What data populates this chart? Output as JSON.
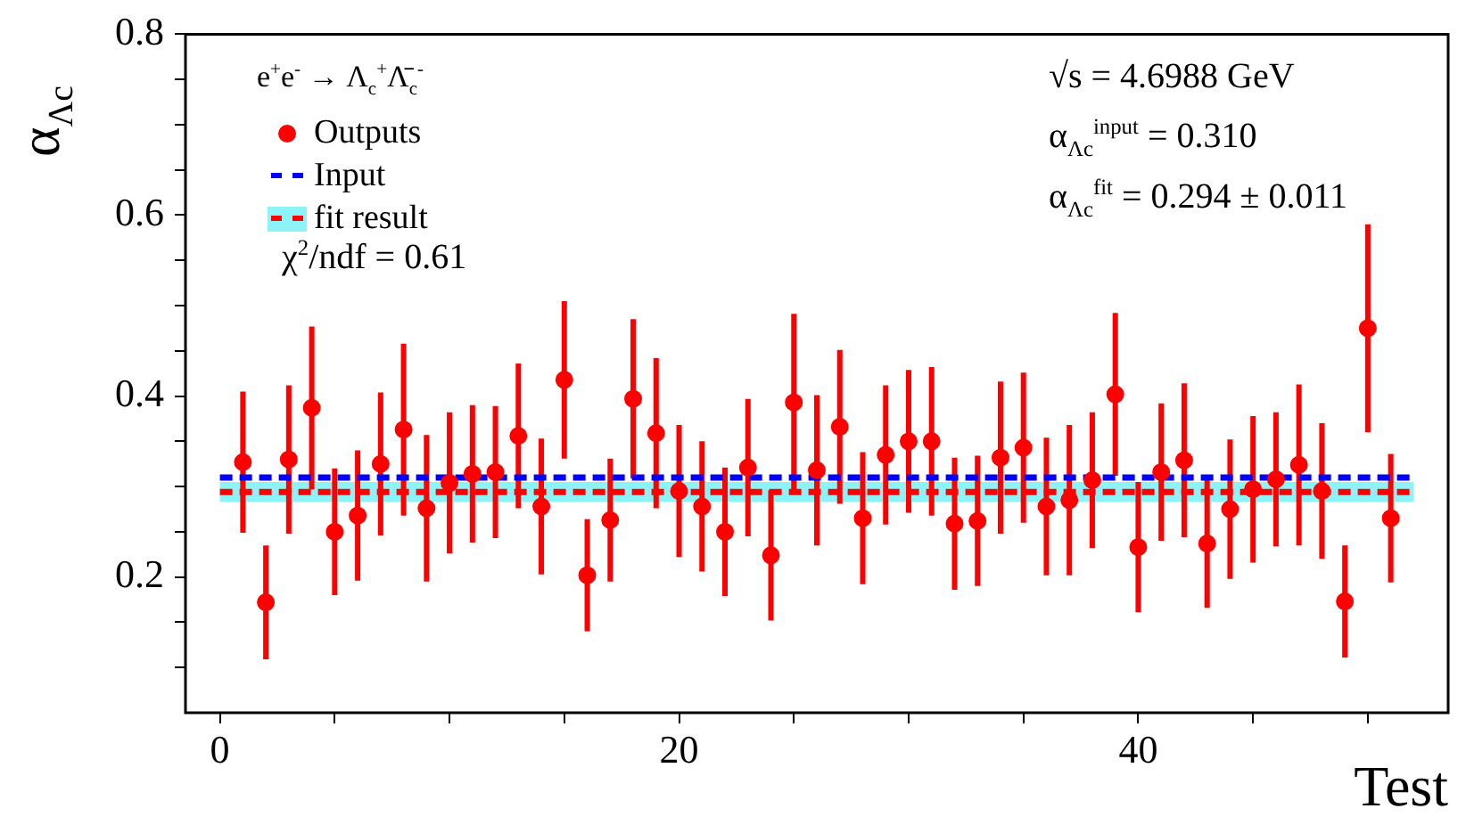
{
  "chart_data": {
    "type": "scatter",
    "xlabel": "Test",
    "ylabel": "α$_{Λc}$",
    "legend_title": "e$^{+}$e$^{-}$ → Λ$_{c}$$^{+}$Λ̄$_{c}$$^{-}$",
    "legend": "top left",
    "xlim": [
      -1.5,
      53.5
    ],
    "xticks": [
      0,
      {
        "value": 5,
        "label": null
      },
      {
        "value": 10,
        "label": null
      },
      {
        "value": 15,
        "label": null
      },
      20,
      {
        "value": 25,
        "label": null
      },
      {
        "value": 30,
        "label": null
      },
      {
        "value": 35,
        "label": null
      },
      40,
      {
        "value": 45,
        "label": null
      },
      {
        "value": 50,
        "label": null
      }
    ],
    "ylim": [
      0.05,
      0.8
    ],
    "yticks": [
      {
        "value": 0.1,
        "label": null
      },
      {
        "value": 0.15,
        "label": null
      },
      0.2,
      {
        "value": 0.25,
        "label": null
      },
      {
        "value": 0.3,
        "label": null
      },
      {
        "value": 0.35,
        "label": null
      },
      0.4,
      {
        "value": 0.45,
        "label": null
      },
      {
        "value": 0.5,
        "label": null
      },
      {
        "value": 0.55,
        "label": null
      },
      0.6,
      {
        "value": 0.65,
        "label": null
      },
      {
        "value": 0.7,
        "label": null
      },
      {
        "value": 0.75,
        "label": null
      },
      0.8
    ],
    "annotations": [
      "χ$^{2}$/ndf = 0.61",
      "√s = 4.6988 GeV",
      "α$_{Λc}$$^{input}$ = 0.310",
      "α$_{Λc}$$^{fit}$ = 0.294 ± 0.011"
    ],
    "series": [
      {
        "name": "Outputs",
        "marker": "circle",
        "color": "#ff0000",
        "x": [
          1,
          2,
          3,
          4,
          5,
          6,
          7,
          8,
          9,
          10,
          11,
          12,
          13,
          14,
          15,
          16,
          17,
          18,
          19,
          20,
          21,
          22,
          23,
          24,
          25,
          26,
          27,
          28,
          29,
          30,
          31,
          32,
          33,
          34,
          35,
          36,
          37,
          38,
          39,
          40,
          41,
          42,
          43,
          44,
          45,
          46,
          47,
          48,
          49,
          50,
          51
        ],
        "values": [
          0.327,
          0.172,
          0.33,
          0.387,
          0.25,
          0.268,
          0.325,
          0.363,
          0.276,
          0.304,
          0.314,
          0.316,
          0.356,
          0.278,
          0.418,
          0.202,
          0.263,
          0.397,
          0.359,
          0.295,
          0.278,
          0.25,
          0.321,
          0.224,
          0.393,
          0.318,
          0.366,
          0.265,
          0.335,
          0.35,
          0.35,
          0.259,
          0.262,
          0.332,
          0.343,
          0.278,
          0.285,
          0.307,
          0.402,
          0.233,
          0.316,
          0.329,
          0.237,
          0.275,
          0.297,
          0.308,
          0.324,
          0.295,
          0.173,
          0.475,
          0.265
        ],
        "errors": [
          0.078,
          0.063,
          0.082,
          0.09,
          0.07,
          0.072,
          0.079,
          0.095,
          0.081,
          0.078,
          0.076,
          0.073,
          0.08,
          0.075,
          0.087,
          0.062,
          0.068,
          0.088,
          0.083,
          0.073,
          0.072,
          0.071,
          0.076,
          0.072,
          0.098,
          0.083,
          0.085,
          0.073,
          0.077,
          0.079,
          0.082,
          0.073,
          0.072,
          0.084,
          0.083,
          0.076,
          0.083,
          0.075,
          0.09,
          0.072,
          0.076,
          0.085,
          0.071,
          0.077,
          0.081,
          0.074,
          0.089,
          0.075,
          0.062,
          0.115,
          0.071
        ]
      },
      {
        "name": "Input",
        "type": "line",
        "marker": "none",
        "color": "#0000ff",
        "line_style": "dashed",
        "x": [
          0,
          52
        ],
        "values": [
          0.31,
          0.31
        ]
      },
      {
        "name": "fit result",
        "type": "line",
        "marker": "none",
        "color": "#ff0000",
        "line_style": "dashed",
        "x": [
          0,
          52
        ],
        "values": [
          0.294,
          0.294
        ],
        "lower": [
          0.283,
          0.283
        ],
        "upper": [
          0.305,
          0.305
        ]
      }
    ]
  }
}
